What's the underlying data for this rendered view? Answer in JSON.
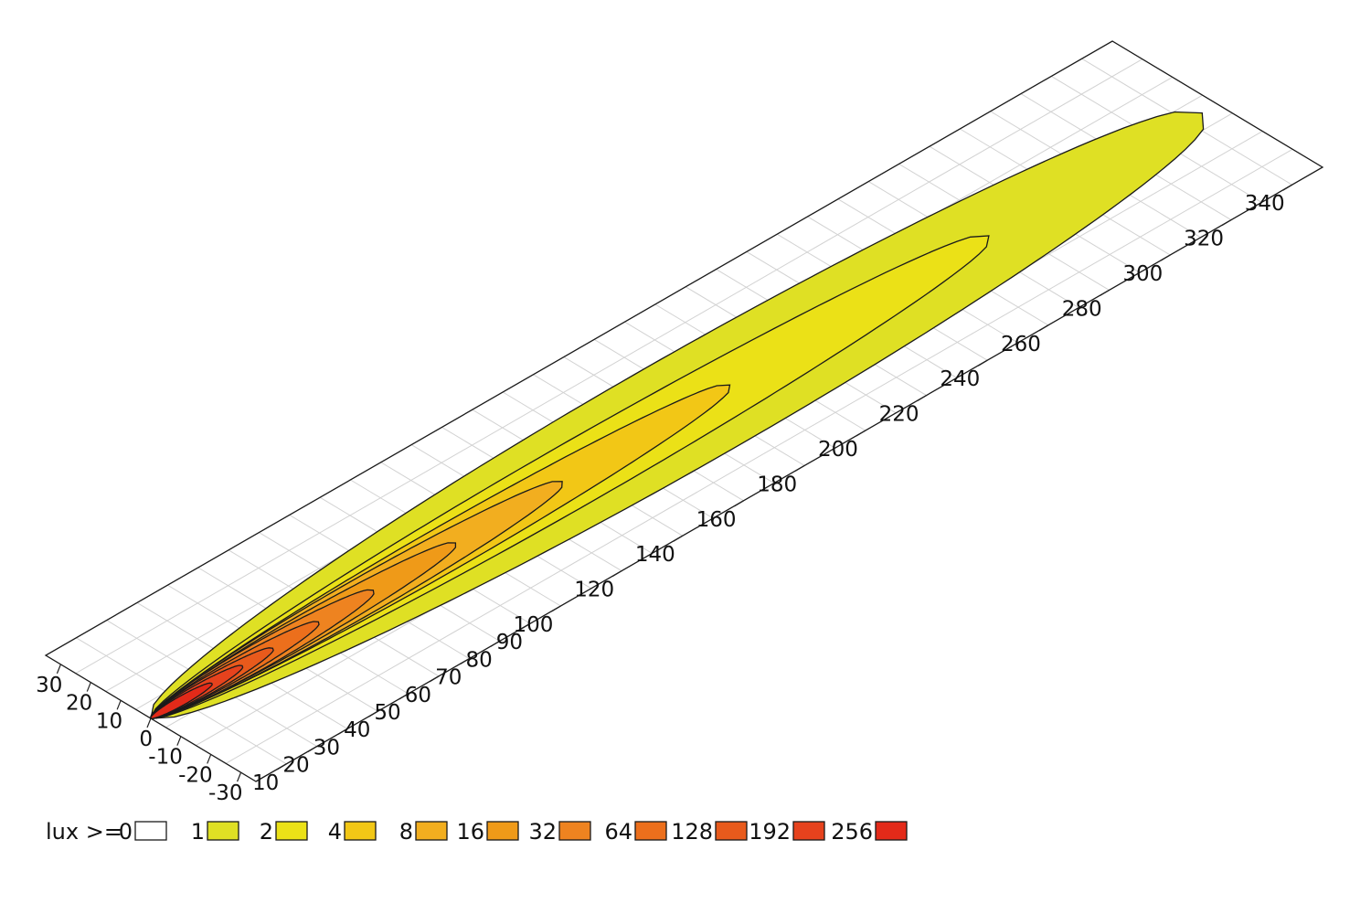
{
  "chart_data": {
    "type": "heatmap",
    "title": "",
    "xlabel": "",
    "ylabel": "",
    "unit": "lux",
    "legend_placement": "bottom-left",
    "grid": true,
    "x_axis": {
      "range": [
        0,
        350
      ],
      "ticks": [
        10,
        20,
        30,
        40,
        50,
        60,
        70,
        80,
        90,
        100,
        120,
        140,
        160,
        180,
        200,
        220,
        240,
        260,
        280,
        300,
        320,
        340
      ]
    },
    "y_axis": {
      "range": [
        -35,
        35
      ],
      "ticks": [
        30,
        20,
        10,
        0,
        -10,
        -20,
        -30
      ]
    },
    "legend": {
      "prefix": "lux >=",
      "levels": [
        {
          "label": "0",
          "value": 0,
          "color": "#ffffff"
        },
        {
          "label": "1",
          "value": 1,
          "color": "#dfe024"
        },
        {
          "label": "2",
          "value": 2,
          "color": "#ebe117"
        },
        {
          "label": "4",
          "value": 4,
          "color": "#f2c716"
        },
        {
          "label": "8",
          "value": 8,
          "color": "#f2ae1f"
        },
        {
          "label": "16",
          "value": 16,
          "color": "#ef9a18"
        },
        {
          "label": "32",
          "value": 32,
          "color": "#ee8320"
        },
        {
          "label": "64",
          "value": 64,
          "color": "#ec6f1c"
        },
        {
          "label": "128",
          "value": 128,
          "color": "#e85a1c"
        },
        {
          "label": "192",
          "value": 192,
          "color": "#e6421d"
        },
        {
          "label": "256",
          "value": 256,
          "color": "#e32a19"
        }
      ]
    },
    "contours": [
      {
        "level": 1,
        "x_min": 0,
        "x_max": 345,
        "half_width_max": 30
      },
      {
        "level": 2,
        "x_min": 0,
        "x_max": 275,
        "half_width_max": 17
      },
      {
        "level": 4,
        "x_min": 0,
        "x_max": 190,
        "half_width_max": 12
      },
      {
        "level": 8,
        "x_min": 0,
        "x_max": 135,
        "half_width_max": 10
      },
      {
        "level": 16,
        "x_min": 0,
        "x_max": 100,
        "half_width_max": 8
      },
      {
        "level": 32,
        "x_min": 0,
        "x_max": 73,
        "half_width_max": 7
      },
      {
        "level": 64,
        "x_min": 0,
        "x_max": 55,
        "half_width_max": 5.5
      },
      {
        "level": 128,
        "x_min": 0,
        "x_max": 40,
        "half_width_max": 4.5
      },
      {
        "level": 192,
        "x_min": 0,
        "x_max": 30,
        "half_width_max": 3.5
      },
      {
        "level": 256,
        "x_min": 0,
        "x_max": 20,
        "half_width_max": 2.5
      }
    ]
  }
}
